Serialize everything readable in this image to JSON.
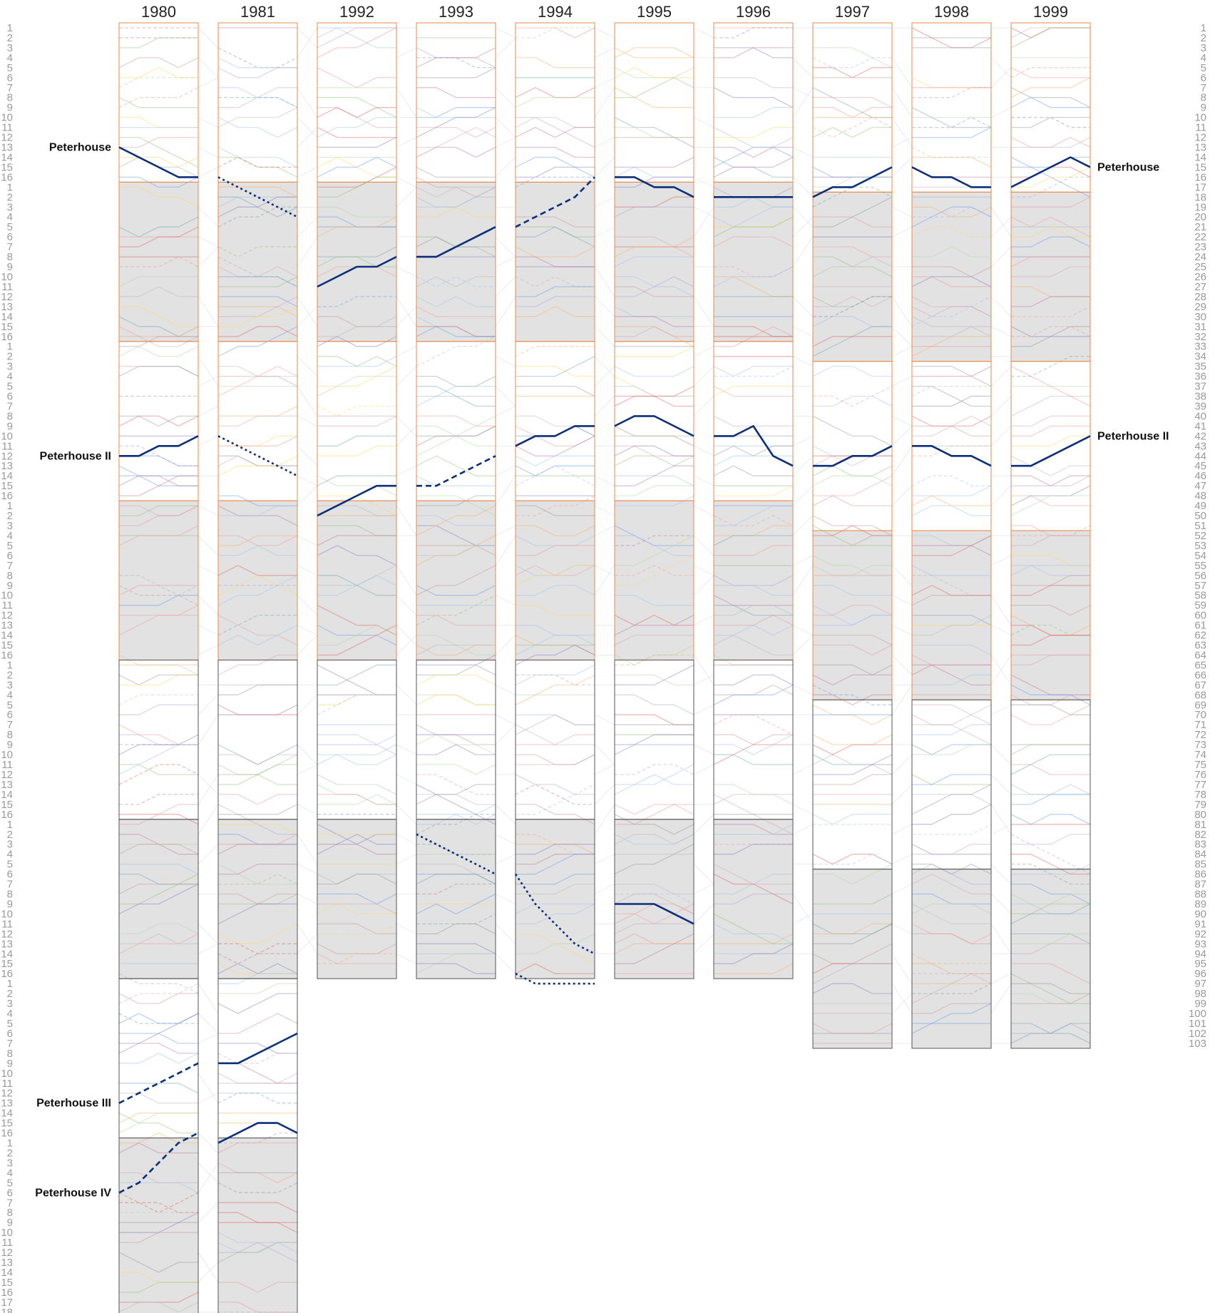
{
  "chart_data": {
    "type": "line",
    "title": "",
    "xlabel": "",
    "ylabel": "",
    "years": [
      "1980",
      "1981",
      "1992",
      "1993",
      "1994",
      "1995",
      "1996",
      "1997",
      "1998",
      "1999"
    ],
    "divisions_per_year": {
      "1980": [
        16,
        16,
        16,
        16,
        16,
        16,
        16,
        18
      ],
      "1981": [
        16,
        16,
        16,
        16,
        16,
        16,
        16,
        18
      ],
      "1992": [
        16,
        16,
        16,
        16,
        16,
        16
      ],
      "1993": [
        16,
        16,
        16,
        16,
        16,
        16
      ],
      "1994": [
        16,
        16,
        16,
        16,
        16,
        16
      ],
      "1995": [
        16,
        16,
        16,
        16,
        16,
        16
      ],
      "1996": [
        16,
        16,
        16,
        16,
        16,
        16
      ],
      "1997": [
        17,
        17,
        17,
        17,
        17,
        18
      ],
      "1998": [
        17,
        17,
        17,
        17,
        17,
        18
      ],
      "1999": [
        17,
        17,
        17,
        17,
        17,
        18
      ]
    },
    "overall_position_labels": [
      "1",
      "2",
      "3",
      "4",
      "5",
      "6",
      "7",
      "8",
      "9",
      "10",
      "11",
      "12",
      "13",
      "14",
      "15",
      "16",
      "17",
      "18",
      "19",
      "20",
      "21",
      "22",
      "23",
      "24",
      "25",
      "26",
      "27",
      "28",
      "29",
      "30",
      "31",
      "32",
      "33",
      "34",
      "35",
      "36",
      "37",
      "38",
      "39",
      "40",
      "41",
      "42",
      "43",
      "44",
      "45",
      "46",
      "47",
      "48",
      "49",
      "50",
      "51",
      "52",
      "53",
      "54",
      "55",
      "56",
      "57",
      "58",
      "59",
      "60",
      "61",
      "62",
      "63",
      "64",
      "65",
      "66",
      "67",
      "68",
      "69",
      "70",
      "71",
      "72",
      "73",
      "74",
      "75",
      "76",
      "77",
      "78",
      "79",
      "80",
      "81",
      "82",
      "83",
      "84",
      "85",
      "86",
      "87",
      "88",
      "89",
      "90",
      "91",
      "92",
      "93",
      "94",
      "95",
      "96",
      "97",
      "98",
      "99",
      "100",
      "101",
      "102",
      "103"
    ],
    "highlighted_crews": [
      {
        "name": "Peterhouse",
        "color": "#0b2f7a",
        "start_label": "Peterhouse",
        "end_label": "Peterhouse",
        "segments": [
          {
            "year": "1980",
            "positions": [
              13,
              14,
              15,
              16,
              16
            ],
            "style": "solid"
          },
          {
            "year": "1981",
            "positions": [
              16,
              17,
              18,
              19,
              20
            ],
            "style": "dotted"
          },
          {
            "year": "1992",
            "positions": [
              27,
              26,
              25,
              25,
              24
            ],
            "style": "solid"
          },
          {
            "year": "1993",
            "positions": [
              24,
              24,
              23,
              22,
              21
            ],
            "style": "solid"
          },
          {
            "year": "1994",
            "positions": [
              21,
              20,
              19,
              18,
              16
            ],
            "style": "dashed"
          },
          {
            "year": "1995",
            "positions": [
              16,
              16,
              17,
              17,
              18
            ],
            "style": "solid"
          },
          {
            "year": "1996",
            "positions": [
              18,
              18,
              18,
              18,
              18
            ],
            "style": "solid"
          },
          {
            "year": "1997",
            "positions": [
              18,
              17,
              17,
              16,
              15
            ],
            "style": "solid"
          },
          {
            "year": "1998",
            "positions": [
              15,
              16,
              16,
              17,
              17
            ],
            "style": "solid"
          },
          {
            "year": "1999",
            "positions": [
              17,
              16,
              15,
              14,
              15
            ],
            "style": "solid"
          }
        ]
      },
      {
        "name": "Peterhouse II",
        "color": "#0b2f7a",
        "start_label": "Peterhouse II",
        "end_label": "Peterhouse II",
        "segments": [
          {
            "year": "1980",
            "positions": [
              44,
              44,
              43,
              43,
              42
            ],
            "style": "solid"
          },
          {
            "year": "1981",
            "positions": [
              42,
              43,
              44,
              45,
              46
            ],
            "style": "dotted"
          },
          {
            "year": "1992",
            "positions": [
              50,
              49,
              48,
              47,
              47
            ],
            "style": "solid"
          },
          {
            "year": "1993",
            "positions": [
              47,
              47,
              46,
              45,
              44
            ],
            "style": "dashed"
          },
          {
            "year": "1994",
            "positions": [
              43,
              42,
              42,
              41,
              41
            ],
            "style": "solid"
          },
          {
            "year": "1995",
            "positions": [
              41,
              40,
              40,
              41,
              42
            ],
            "style": "solid"
          },
          {
            "year": "1996",
            "positions": [
              42,
              42,
              41,
              44,
              45
            ],
            "style": "solid"
          },
          {
            "year": "1997",
            "positions": [
              45,
              45,
              44,
              44,
              43
            ],
            "style": "solid"
          },
          {
            "year": "1998",
            "positions": [
              43,
              43,
              44,
              44,
              45
            ],
            "style": "solid"
          },
          {
            "year": "1999",
            "positions": [
              45,
              45,
              44,
              43,
              42
            ],
            "style": "solid"
          }
        ]
      },
      {
        "name": "Peterhouse III",
        "color": "#0b2f7a",
        "start_label": "Peterhouse III",
        "end_label": "",
        "segments": [
          {
            "year": "1980",
            "positions": [
              109,
              108,
              107,
              106,
              105
            ],
            "style": "dashed"
          },
          {
            "year": "1981",
            "positions": [
              105,
              105,
              104,
              103,
              102
            ],
            "style": "solid"
          },
          {
            "year": "1993",
            "positions": [
              82,
              83,
              84,
              85,
              86
            ],
            "style": "dotted"
          },
          {
            "year": "1994",
            "positions": [
              86,
              89,
              91,
              93,
              94
            ],
            "style": "dotted"
          },
          {
            "year": "1995",
            "positions": [
              89,
              89,
              89,
              90,
              91
            ],
            "style": "solid"
          }
        ]
      },
      {
        "name": "Peterhouse IV",
        "color": "#0b2f7a",
        "start_label": "Peterhouse IV",
        "end_label": "",
        "segments": [
          {
            "year": "1980",
            "positions": [
              118,
              117,
              115,
              113,
              112
            ],
            "style": "dashed"
          },
          {
            "year": "1981",
            "positions": [
              113,
              112,
              111,
              111,
              112
            ],
            "style": "solid"
          },
          {
            "year": "1994",
            "positions": [
              96,
              97,
              97,
              97,
              97
            ],
            "style": "dotted"
          }
        ]
      }
    ]
  }
}
